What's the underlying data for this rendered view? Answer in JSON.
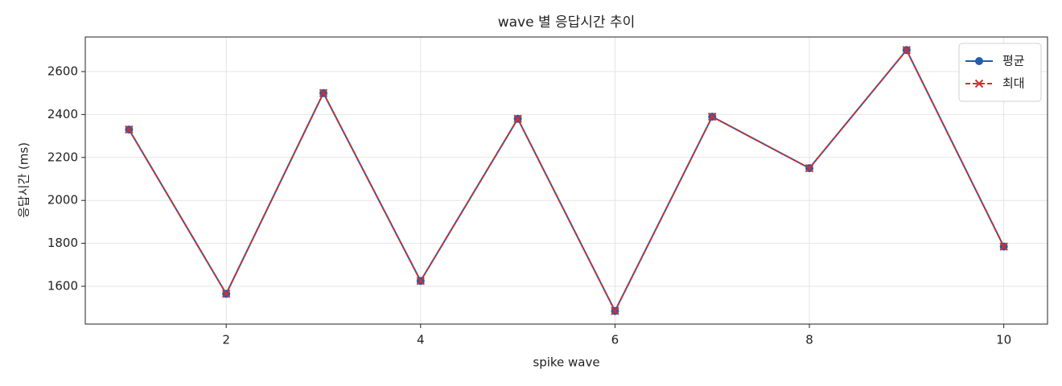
{
  "chart_data": {
    "type": "line",
    "title": "wave 별 응답시간 추이",
    "x_label": "spike wave",
    "y_label": "응답시간 (ms)",
    "x": [
      1,
      2,
      3,
      4,
      5,
      6,
      7,
      8,
      9,
      10
    ],
    "series": [
      {
        "name": "평균",
        "color": "#1f5fad",
        "marker": "circle",
        "dashed": false,
        "values": [
          2330,
          1565,
          2500,
          1625,
          2380,
          1485,
          2390,
          2150,
          2700,
          1785
        ]
      },
      {
        "name": "최대",
        "color": "#d03030",
        "marker": "x",
        "dashed": true,
        "values": [
          2330,
          1565,
          2500,
          1625,
          2380,
          1485,
          2390,
          2150,
          2700,
          1785
        ]
      }
    ],
    "xlim": [
      0.55,
      10.45
    ],
    "ylim": [
      1424,
      2761
    ],
    "xticks": [
      2,
      4,
      6,
      8,
      10
    ],
    "yticks": [
      1600,
      1800,
      2000,
      2200,
      2400,
      2600
    ],
    "grid": true,
    "legend": "upper right"
  }
}
